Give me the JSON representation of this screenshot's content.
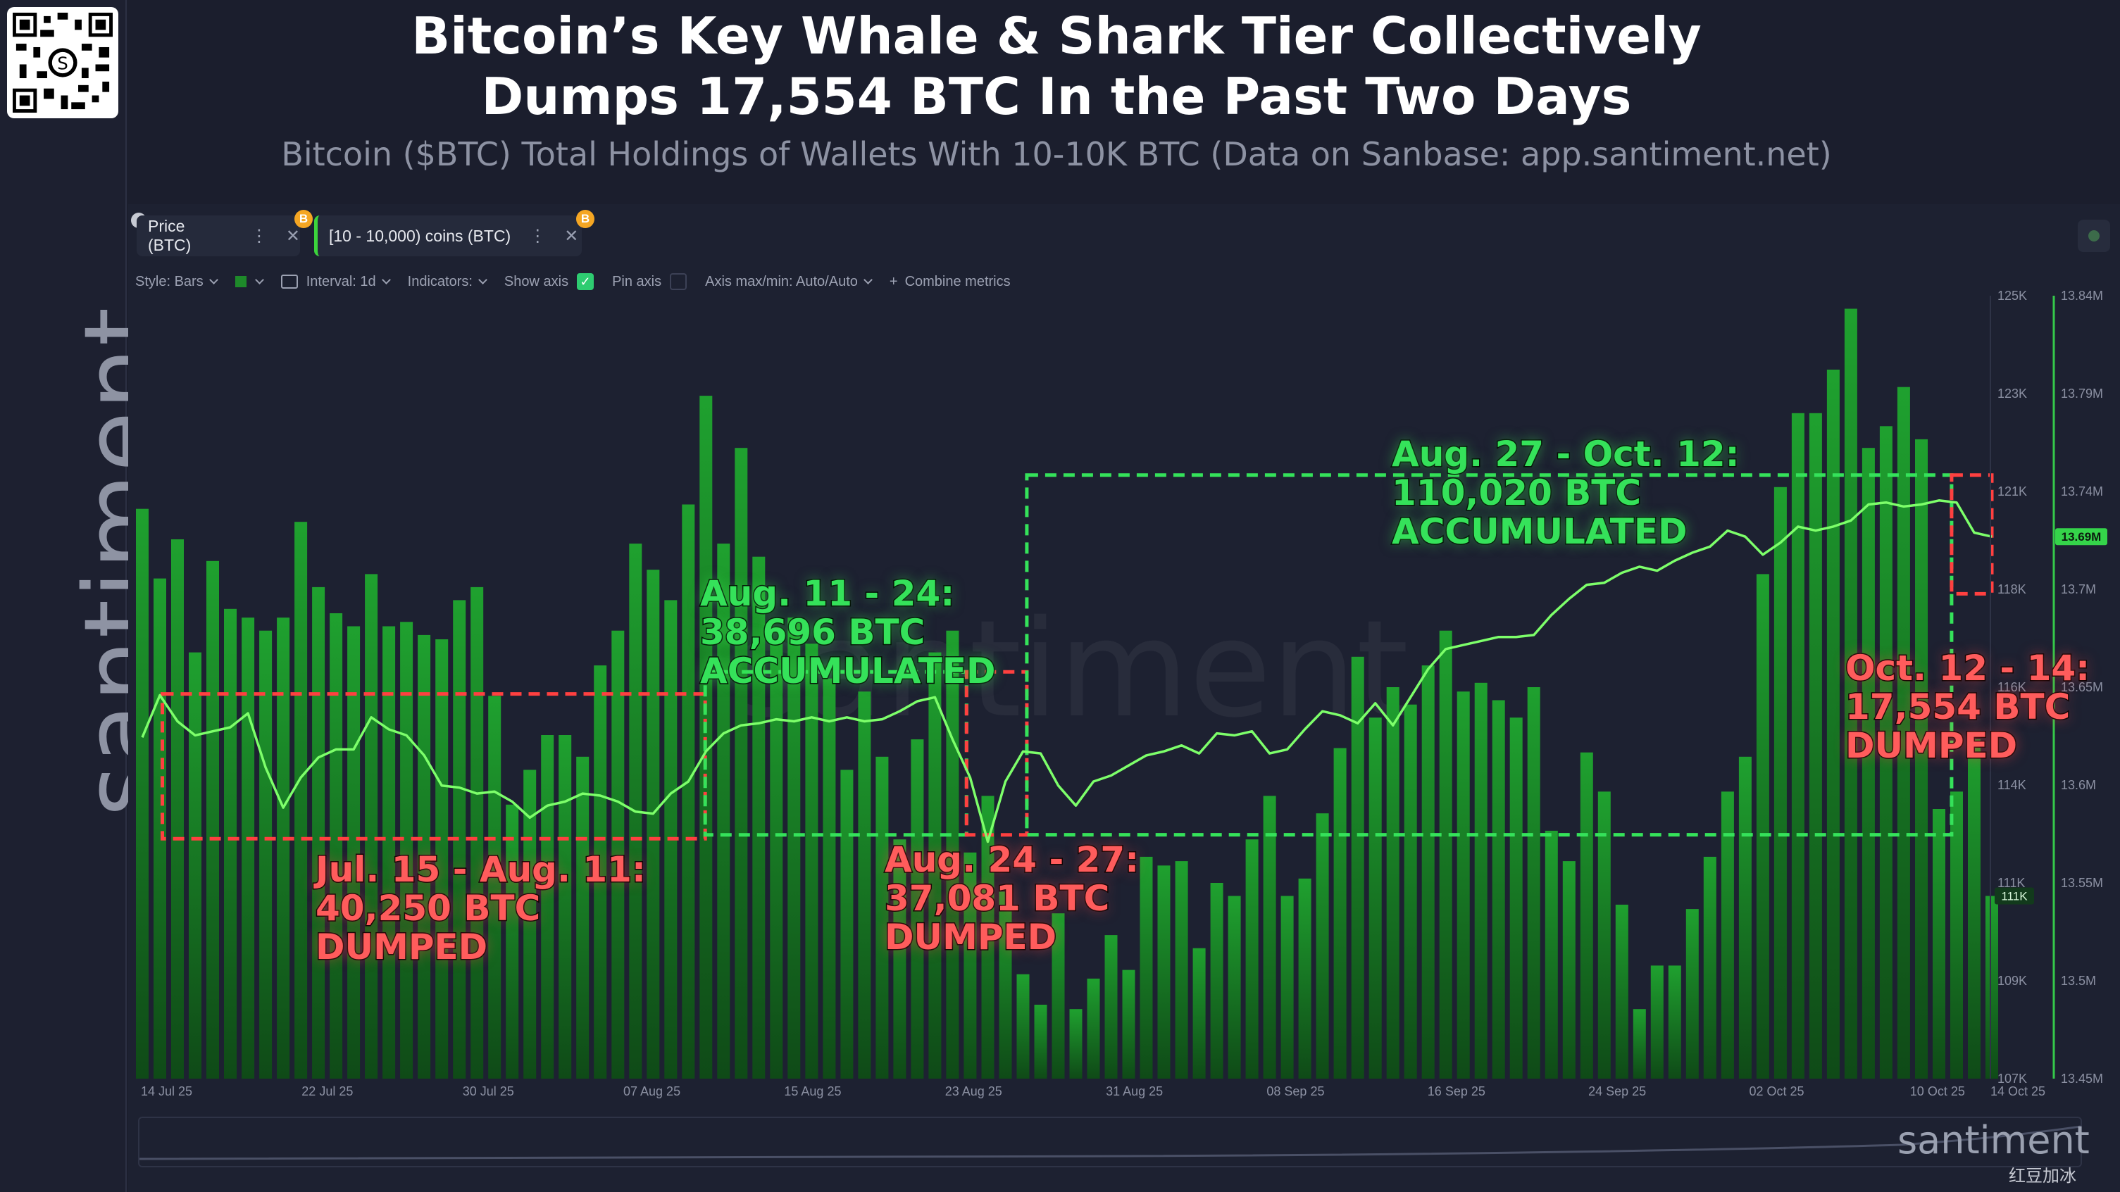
{
  "header": {
    "title_line1": "Bitcoin’s Key Whale & Shark Tier Collectively",
    "title_line2": "Dumps 17,554 BTC In the Past Two Days",
    "subtitle": "Bitcoin ($BTC) Total Holdings of Wallets With 10-10K BTC (Data on Sanbase: app.santiment.net)"
  },
  "brand": {
    "side_logo": "santiment.",
    "footer_logo": "santiment",
    "footer_credit": "红豆加冰",
    "watermark": "santiment"
  },
  "tabs": [
    {
      "label": "Price (BTC)",
      "badge": "B"
    },
    {
      "label": "[10 - 10,000) coins (BTC)",
      "badge": "B"
    }
  ],
  "toolbar": {
    "style": "Style: Bars",
    "interval": "Interval: 1d",
    "indicators": "Indicators:",
    "show_axis": "Show axis",
    "pin_axis": "Pin axis",
    "axis_minmax": "Axis max/min: Auto/Auto",
    "combine": "Combine metrics"
  },
  "colors": {
    "accent_green": "#35e25a",
    "accent_red": "#ff5c5c",
    "bar_green": "#1e8a2a",
    "line_green": "#7dff6a",
    "background": "#1b1e2d"
  },
  "chart_data": {
    "type": "bar",
    "title": "Bitcoin’s Key Whale & Shark Tier Collectively Dumps 17,554 BTC In the Past Two Days",
    "subtitle": "Bitcoin ($BTC) Total Holdings of Wallets With 10-10K BTC (Data on Sanbase: app.santiment.net)",
    "x_ticks": [
      "14 Jul 25",
      "22 Jul 25",
      "30 Jul 25",
      "07 Aug 25",
      "15 Aug 25",
      "23 Aug 25",
      "31 Aug 25",
      "08 Sep 25",
      "16 Sep 25",
      "24 Sep 25",
      "02 Oct 25",
      "10 Oct 25",
      "14 Oct 25"
    ],
    "x_range": [
      "2025-07-14",
      "2025-10-14"
    ],
    "price_axis": {
      "ticks": [
        "125K",
        "123K",
        "121K",
        "118K",
        "116K",
        "114K",
        "111K",
        "109K",
        "107K"
      ],
      "range": [
        107000,
        125000
      ],
      "current_label": "111K"
    },
    "holdings_axis": {
      "ticks": [
        "13.84M",
        "13.79M",
        "13.74M",
        "13.7M",
        "13.65M",
        "13.6M",
        "13.55M",
        "13.5M",
        "13.45M"
      ],
      "range": [
        13450000,
        13840000
      ],
      "current_label": "13.69M"
    },
    "series": [
      {
        "name": "Price (BTC)",
        "style": "bars",
        "values": [
          120100,
          118500,
          119400,
          116800,
          118900,
          117800,
          117600,
          117300,
          117600,
          119800,
          118300,
          117700,
          117400,
          118600,
          117400,
          117500,
          117200,
          117100,
          118000,
          118300,
          115800,
          113300,
          114100,
          114900,
          114900,
          114400,
          116500,
          117300,
          119300,
          118700,
          118000,
          120200,
          122700,
          119300,
          121500,
          119000,
          117000,
          117600,
          117000,
          116200,
          114100,
          115900,
          114400,
          112500,
          114800,
          116800,
          117300,
          112200,
          113500,
          111300,
          109400,
          108700,
          110800,
          108600,
          109300,
          110300,
          109500,
          112100,
          111900,
          112000,
          110000,
          111500,
          111200,
          112500,
          113500,
          111200,
          111600,
          113100,
          114600,
          116700,
          115300,
          116000,
          115600,
          116500,
          117300,
          115900,
          116100,
          115700,
          115300,
          116000,
          112700,
          112000,
          114500,
          113600,
          111000,
          108600,
          109600,
          109600,
          110900,
          112100,
          113600,
          114400,
          118600,
          120600,
          122300,
          122300,
          123300,
          124700,
          121500,
          122000,
          122900,
          121700,
          113200,
          113600,
          114800,
          111200
        ]
      },
      {
        "name": "[10 - 10,000) coins (BTC)",
        "style": "line",
        "values": [
          13620000,
          13641000,
          13628000,
          13621000,
          13623000,
          13625000,
          13632000,
          13605000,
          13585000,
          13600000,
          13610000,
          13614000,
          13614000,
          13630000,
          13624000,
          13621000,
          13611000,
          13596000,
          13595000,
          13592000,
          13593000,
          13588000,
          13580000,
          13586000,
          13588000,
          13592000,
          13591000,
          13588000,
          13583000,
          13582000,
          13592000,
          13598000,
          13613000,
          13622000,
          13626000,
          13627000,
          13629000,
          13628000,
          13630000,
          13628000,
          13630000,
          13628000,
          13629000,
          13633000,
          13638000,
          13640000,
          13619000,
          13600000,
          13568000,
          13598000,
          13613000,
          13612000,
          13596000,
          13586000,
          13598000,
          13601000,
          13606000,
          13611000,
          13613000,
          13616000,
          13612000,
          13622000,
          13621000,
          13623000,
          13612000,
          13614000,
          13624000,
          13633000,
          13631000,
          13627000,
          13637000,
          13626000,
          13640000,
          13654000,
          13664000,
          13666000,
          13668000,
          13670000,
          13670000,
          13671000,
          13681000,
          13689000,
          13696000,
          13697000,
          13702000,
          13705000,
          13703000,
          13708000,
          13712000,
          13715000,
          13723000,
          13720000,
          13711000,
          13717000,
          13725000,
          13723000,
          13725000,
          13728000,
          13736000,
          13737000,
          13735000,
          13736000,
          13738000,
          13737000,
          13722000,
          13720000
        ]
      }
    ],
    "annotations": [
      {
        "lines": [
          "Jul. 15 - Aug. 11:",
          "40,250 BTC",
          "DUMPED"
        ],
        "color": "red",
        "from": "2025-07-15",
        "to": "2025-08-11",
        "range_low": 13580000,
        "range_high": 13629000
      },
      {
        "lines": [
          "Aug. 11 - 24:",
          "38,696 BTC",
          "ACCUMULATED"
        ],
        "color": "green",
        "from": "2025-08-11",
        "to": "2025-08-24",
        "range_low": 13582000,
        "range_high": 13640000
      },
      {
        "lines": [
          "Aug. 24 - 27:",
          "37,081 BTC",
          "DUMPED"
        ],
        "color": "red",
        "from": "2025-08-24",
        "to": "2025-08-27",
        "range_low": 13582000,
        "range_high": 13640000
      },
      {
        "lines": [
          "Aug. 27 - Oct. 12:",
          "110,020 BTC",
          "ACCUMULATED"
        ],
        "color": "green",
        "from": "2025-08-27",
        "to": "2025-10-12",
        "range_low": 13582000,
        "range_high": 13738000
      },
      {
        "lines": [
          "Oct. 12 - 14:",
          "17,554 BTC",
          "DUMPED"
        ],
        "color": "red",
        "from": "2025-10-12",
        "to": "2025-10-14",
        "range_low": 13702000,
        "range_high": 13738000
      }
    ],
    "legend": "top-left",
    "grid": false
  }
}
